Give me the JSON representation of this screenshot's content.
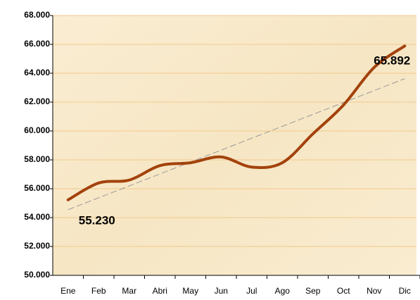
{
  "chart_data": {
    "type": "line",
    "categories": [
      "Ene",
      "Feb",
      "Mar",
      "Abri",
      "May",
      "Jun",
      "Jul",
      "Ago",
      "Sep",
      "Oct",
      "Nov",
      "Dic"
    ],
    "values": [
      55230,
      56400,
      56600,
      57600,
      57800,
      58200,
      57500,
      57800,
      59800,
      61800,
      64400,
      65892
    ],
    "value_labels": [
      "55.230",
      null,
      null,
      null,
      null,
      null,
      null,
      null,
      null,
      null,
      null,
      "65.892"
    ],
    "color": "#a3420c",
    "trendline": true,
    "ylim": [
      50000,
      68000
    ],
    "yticks": [
      {
        "value": 50000,
        "label": "50.000"
      },
      {
        "value": 52000,
        "label": "52.000"
      },
      {
        "value": 54000,
        "label": "54.000"
      },
      {
        "value": 56000,
        "label": "56.000"
      },
      {
        "value": 58000,
        "label": "58.000"
      },
      {
        "value": 60000,
        "label": "60.000"
      },
      {
        "value": 62000,
        "label": "62.000"
      },
      {
        "value": 64000,
        "label": "64.000"
      },
      {
        "value": 66000,
        "label": "66.000"
      },
      {
        "value": 68000,
        "label": "68.000"
      }
    ],
    "grid": true
  }
}
